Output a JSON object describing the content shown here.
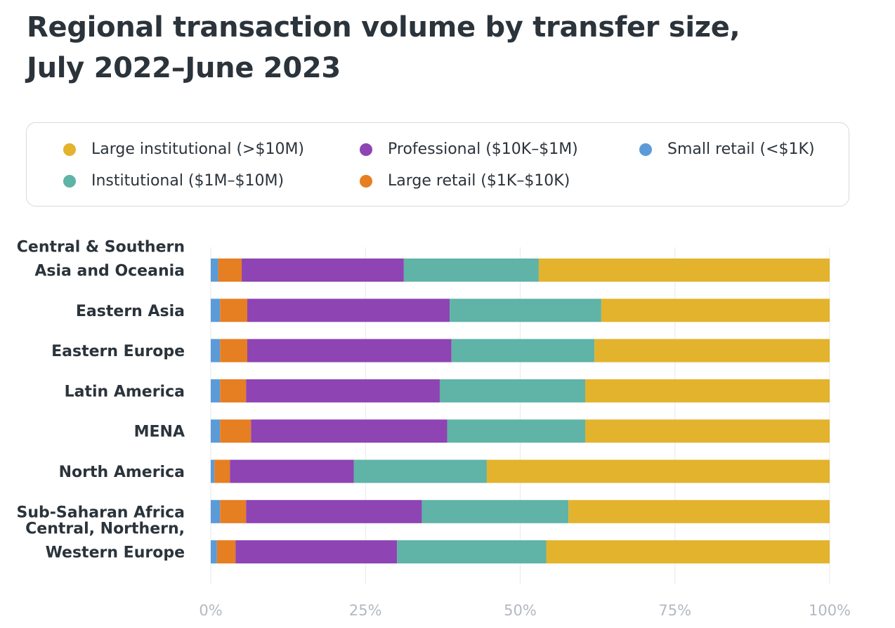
{
  "title_lines": [
    "Regional transaction volume by transfer size,",
    "July 2022–June 2023"
  ],
  "legend": [
    {
      "label": "Large institutional (>$10M)",
      "color": "#e3b32e"
    },
    {
      "label": "Professional ($10K–$1M)",
      "color": "#8e44b3"
    },
    {
      "label": "Small retail (<$1K)",
      "color": "#5b9bd8"
    },
    {
      "label": "Institutional ($1M–$10M)",
      "color": "#5fb3a7"
    },
    {
      "label": "Large retail ($1K–$10K)",
      "color": "#e67e22"
    }
  ],
  "chart_data": {
    "type": "bar",
    "orientation": "horizontal",
    "stacked": true,
    "categories": [
      [
        "Central & Southern",
        "Asia and Oceania"
      ],
      [
        "Eastern Asia"
      ],
      [
        "Eastern Europe"
      ],
      [
        "Latin America"
      ],
      [
        "MENA"
      ],
      [
        "North America"
      ],
      [
        "Sub-Saharan Africa"
      ],
      [
        "Central, Northern,",
        "Western Europe"
      ]
    ],
    "series": [
      {
        "name": "Small retail (<$1K)",
        "color": "#5b9bd8",
        "values": [
          1.2,
          1.5,
          1.5,
          1.5,
          1.5,
          0.6,
          1.5,
          1.0
        ]
      },
      {
        "name": "Large retail ($1K–$10K)",
        "color": "#e67e22",
        "values": [
          3.8,
          4.4,
          4.4,
          4.2,
          5.0,
          2.5,
          4.2,
          3.0
        ]
      },
      {
        "name": "Professional ($10K–$1M)",
        "color": "#8e44b3",
        "values": [
          26.2,
          32.7,
          33.0,
          31.3,
          31.7,
          20.0,
          28.4,
          26.1
        ]
      },
      {
        "name": "Institutional ($1M–$10M)",
        "color": "#5fb3a7",
        "values": [
          21.8,
          24.5,
          23.1,
          23.5,
          22.3,
          21.5,
          23.7,
          24.1
        ]
      },
      {
        "name": "Large institutional (>$10M)",
        "color": "#e3b32e",
        "values": [
          47.0,
          36.9,
          38.0,
          39.5,
          39.5,
          55.4,
          42.2,
          45.8
        ]
      }
    ],
    "x_ticks": [
      "0%",
      "25%",
      "50%",
      "75%",
      "100%"
    ],
    "xlim": [
      0,
      100
    ],
    "xlabel": "",
    "ylabel": "",
    "grid": true
  }
}
